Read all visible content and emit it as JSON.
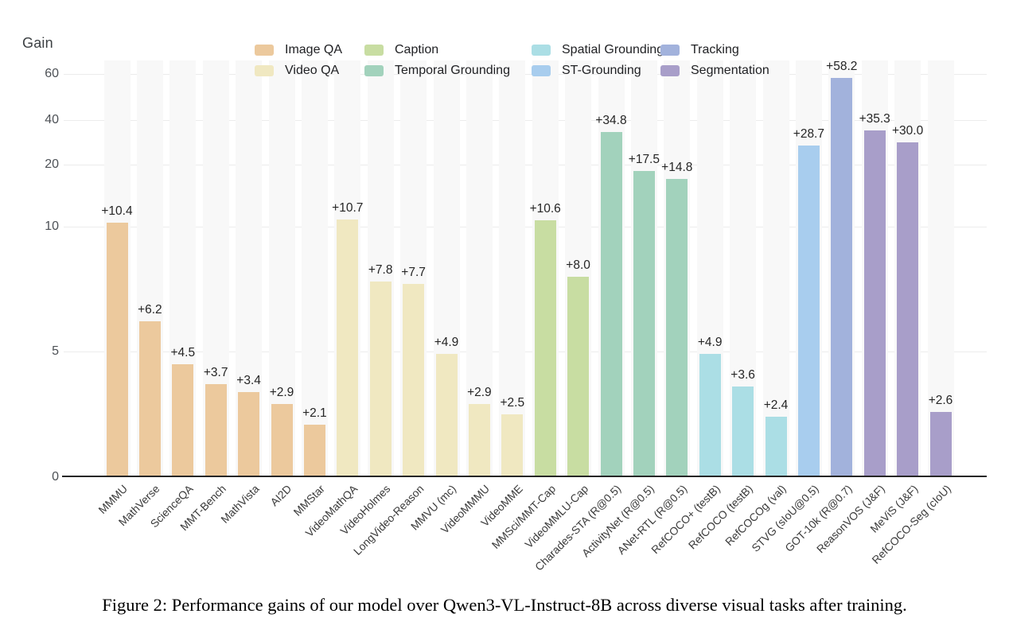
{
  "figure_caption": "Figure 2: Performance gains of our model over Qwen3-VL-Instruct-8B across diverse visual tasks after training.",
  "chart_data": {
    "type": "bar",
    "title": "",
    "ylabel": "Gain",
    "xlabel": "",
    "yticks": [
      0,
      5,
      10,
      20,
      40,
      60
    ],
    "ylim": [
      0,
      65
    ],
    "y_scale": "custom-compressed (linear 0-10, compressed above)",
    "grid": "horizontal",
    "legend_position": "top",
    "legend_columns": [
      [
        "Image QA",
        "Video QA"
      ],
      [
        "Caption",
        "Temporal Grounding"
      ],
      [
        "Spatial Grounding",
        "ST-Grounding"
      ],
      [
        "Tracking",
        "Segmentation"
      ]
    ],
    "groups": {
      "Image QA": {
        "color": "#ecc99d"
      },
      "Video QA": {
        "color": "#f0e8c1"
      },
      "Caption": {
        "color": "#c8dda2"
      },
      "Temporal Grounding": {
        "color": "#a2d2bc"
      },
      "Spatial Grounding": {
        "color": "#abdee5"
      },
      "ST-Grounding": {
        "color": "#a8cdee"
      },
      "Tracking": {
        "color": "#a2b2dc"
      },
      "Segmentation": {
        "color": "#a89ec9"
      }
    },
    "bars": [
      {
        "label": "MMMU",
        "value": 10.4,
        "display": "+10.4",
        "group": "Image QA"
      },
      {
        "label": "MathVerse",
        "value": 6.2,
        "display": "+6.2",
        "group": "Image QA"
      },
      {
        "label": "ScienceQA",
        "value": 4.5,
        "display": "+4.5",
        "group": "Image QA"
      },
      {
        "label": "MMT-Bench",
        "value": 3.7,
        "display": "+3.7",
        "group": "Image QA"
      },
      {
        "label": "MathVista",
        "value": 3.4,
        "display": "+3.4",
        "group": "Image QA"
      },
      {
        "label": "AI2D",
        "value": 2.9,
        "display": "+2.9",
        "group": "Image QA"
      },
      {
        "label": "MMStar",
        "value": 2.1,
        "display": "+2.1",
        "group": "Image QA"
      },
      {
        "label": "VideoMathQA",
        "value": 10.7,
        "display": "+10.7",
        "group": "Video QA"
      },
      {
        "label": "VideoHolmes",
        "value": 7.8,
        "display": "+7.8",
        "group": "Video QA"
      },
      {
        "label": "LongVideo-Reason",
        "value": 7.7,
        "display": "+7.7",
        "group": "Video QA"
      },
      {
        "label": "MMVU (mc)",
        "value": 4.9,
        "display": "+4.9",
        "group": "Video QA"
      },
      {
        "label": "VideoMMMU",
        "value": 2.9,
        "display": "+2.9",
        "group": "Video QA"
      },
      {
        "label": "VideoMME",
        "value": 2.5,
        "display": "+2.5",
        "group": "Video QA"
      },
      {
        "label": "MMSci/MMT-Cap",
        "value": 10.6,
        "display": "+10.6",
        "group": "Caption"
      },
      {
        "label": "VideoMMLU-Cap",
        "value": 8.0,
        "display": "+8.0",
        "group": "Caption"
      },
      {
        "label": "Charades-STA (R@0.5)",
        "value": 34.8,
        "display": "+34.8",
        "group": "Temporal Grounding"
      },
      {
        "label": "ActivityNet (R@0.5)",
        "value": 17.5,
        "display": "+17.5",
        "group": "Temporal Grounding"
      },
      {
        "label": "ANet-RTL (R@0.5)",
        "value": 14.8,
        "display": "+14.8",
        "group": "Temporal Grounding"
      },
      {
        "label": "RefCOCO+ (testB)",
        "value": 4.9,
        "display": "+4.9",
        "group": "Spatial Grounding"
      },
      {
        "label": "RefCOCO (testB)",
        "value": 3.6,
        "display": "+3.6",
        "group": "Spatial Grounding"
      },
      {
        "label": "RefCOCOg (val)",
        "value": 2.4,
        "display": "+2.4",
        "group": "Spatial Grounding"
      },
      {
        "label": "STVG (sIoU@0.5)",
        "value": 28.7,
        "display": "+28.7",
        "group": "ST-Grounding"
      },
      {
        "label": "GOT-10k (R@0.7)",
        "value": 58.2,
        "display": "+58.2",
        "group": "Tracking"
      },
      {
        "label": "ReasonVOS (J&F)",
        "value": 35.3,
        "display": "+35.3",
        "group": "Segmentation"
      },
      {
        "label": "MeViS (J&F)",
        "value": 30.0,
        "display": "+30.0",
        "group": "Segmentation"
      },
      {
        "label": "RefCOCO-Seg (cIoU)",
        "value": 2.6,
        "display": "+2.6",
        "group": "Segmentation"
      }
    ]
  }
}
